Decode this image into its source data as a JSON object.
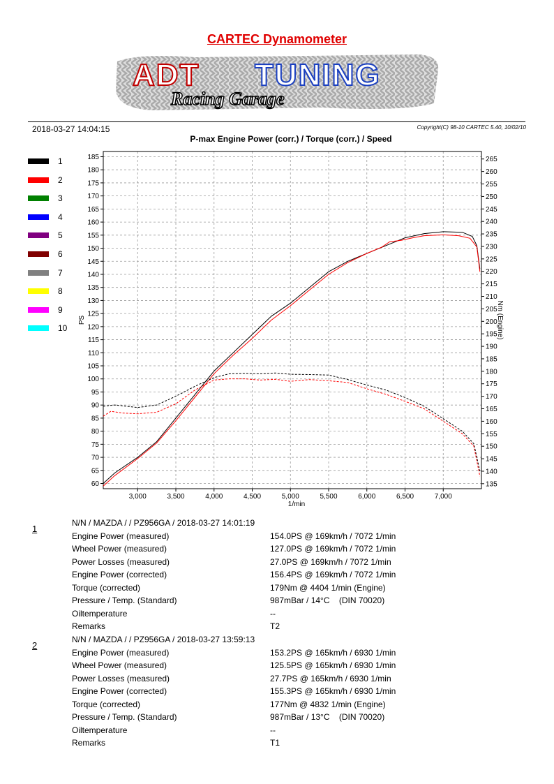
{
  "header": {
    "title": "CARTEC Dynamometer",
    "datetime": "2018-03-27  14:04:15",
    "copyright": "Copyright(C) 98-10 CARTEC 5.40, 10/02/10",
    "logo": {
      "text": "ADT TUNING",
      "subtext": "Racing Garage"
    }
  },
  "legend": [
    {
      "label": "1",
      "color": "#000000"
    },
    {
      "label": "2",
      "color": "#ff0000"
    },
    {
      "label": "3",
      "color": "#008000"
    },
    {
      "label": "4",
      "color": "#0000ff"
    },
    {
      "label": "5",
      "color": "#800080"
    },
    {
      "label": "6",
      "color": "#800000"
    },
    {
      "label": "7",
      "color": "#808080"
    },
    {
      "label": "8",
      "color": "#ffff00"
    },
    {
      "label": "9",
      "color": "#ff00ff"
    },
    {
      "label": "10",
      "color": "#00ffff"
    }
  ],
  "chart_data": {
    "type": "line",
    "title": "P-max Engine Power (corr.) / Torque (corr.) / Speed",
    "xlabel": "1/min",
    "ylabel": "PS",
    "y2label": "Nm (Engine)",
    "xlim": [
      2550,
      7500
    ],
    "ylim": [
      58,
      187
    ],
    "y2lim": [
      133,
      268
    ],
    "xticks": [
      3000,
      3500,
      4000,
      4500,
      5000,
      5500,
      6000,
      6500,
      7000
    ],
    "xtick_labels": [
      "3,000",
      "3,500",
      "4,000",
      "4,500",
      "5,000",
      "5,500",
      "6,000",
      "6,500",
      "7,000"
    ],
    "yticks": [
      60,
      65,
      70,
      75,
      80,
      85,
      90,
      95,
      100,
      105,
      110,
      115,
      120,
      125,
      130,
      135,
      140,
      145,
      150,
      155,
      160,
      165,
      170,
      175,
      180,
      185
    ],
    "y2ticks": [
      135,
      140,
      145,
      150,
      155,
      160,
      165,
      170,
      175,
      180,
      185,
      190,
      195,
      200,
      205,
      210,
      215,
      220,
      225,
      230,
      235,
      240,
      245,
      250,
      255,
      260,
      265
    ],
    "grid": true,
    "series": [
      {
        "name": "1",
        "kind": "power",
        "axis": "left",
        "color": "#000000",
        "points": [
          [
            2550,
            60
          ],
          [
            2700,
            64
          ],
          [
            3000,
            70
          ],
          [
            3250,
            76
          ],
          [
            3500,
            85
          ],
          [
            3750,
            94
          ],
          [
            4000,
            103
          ],
          [
            4250,
            110
          ],
          [
            4500,
            117
          ],
          [
            4750,
            124
          ],
          [
            5000,
            129
          ],
          [
            5250,
            135
          ],
          [
            5500,
            141
          ],
          [
            5750,
            145
          ],
          [
            6000,
            148
          ],
          [
            6250,
            151
          ],
          [
            6500,
            154
          ],
          [
            6750,
            155.6
          ],
          [
            7000,
            156.3
          ],
          [
            7250,
            156.1
          ],
          [
            7380,
            154.5
          ],
          [
            7440,
            151
          ],
          [
            7480,
            142
          ]
        ]
      },
      {
        "name": "2",
        "kind": "power",
        "axis": "left",
        "color": "#ff0000",
        "points": [
          [
            2550,
            59
          ],
          [
            2700,
            63
          ],
          [
            3000,
            69.5
          ],
          [
            3250,
            75.5
          ],
          [
            3500,
            84
          ],
          [
            3750,
            93
          ],
          [
            4000,
            102
          ],
          [
            4250,
            109
          ],
          [
            4500,
            115.5
          ],
          [
            4750,
            122.5
          ],
          [
            5000,
            128
          ],
          [
            5250,
            134
          ],
          [
            5500,
            140
          ],
          [
            5750,
            144.5
          ],
          [
            6000,
            148
          ],
          [
            6200,
            150.5
          ],
          [
            6300,
            152.5
          ],
          [
            6450,
            153
          ],
          [
            6600,
            154
          ],
          [
            6750,
            154.8
          ],
          [
            7000,
            155.1
          ],
          [
            7200,
            154.8
          ],
          [
            7350,
            153.8
          ],
          [
            7440,
            150.5
          ],
          [
            7480,
            141
          ]
        ]
      },
      {
        "name": "1",
        "kind": "torque",
        "axis": "right",
        "color": "#000000",
        "points": [
          [
            2550,
            166
          ],
          [
            2700,
            166.5
          ],
          [
            3000,
            165.5
          ],
          [
            3250,
            166.5
          ],
          [
            3500,
            170
          ],
          [
            3750,
            174
          ],
          [
            4000,
            177.5
          ],
          [
            4200,
            179
          ],
          [
            4400,
            179.2
          ],
          [
            4600,
            179
          ],
          [
            4800,
            179.3
          ],
          [
            5000,
            178.8
          ],
          [
            5250,
            178.7
          ],
          [
            5500,
            178.5
          ],
          [
            5750,
            176.7
          ],
          [
            6000,
            174.5
          ],
          [
            6250,
            172.5
          ],
          [
            6500,
            169.5
          ],
          [
            6750,
            166
          ],
          [
            7000,
            161
          ],
          [
            7250,
            156
          ],
          [
            7400,
            151
          ],
          [
            7480,
            140
          ]
        ]
      },
      {
        "name": "2",
        "kind": "torque",
        "axis": "right",
        "color": "#ff0000",
        "points": [
          [
            2550,
            162
          ],
          [
            2650,
            164
          ],
          [
            2800,
            163.3
          ],
          [
            3000,
            163
          ],
          [
            3250,
            163.6
          ],
          [
            3500,
            167
          ],
          [
            3750,
            172.5
          ],
          [
            4000,
            176.5
          ],
          [
            4200,
            177
          ],
          [
            4400,
            177
          ],
          [
            4600,
            176.5
          ],
          [
            4800,
            176.8
          ],
          [
            5000,
            176
          ],
          [
            5250,
            176.7
          ],
          [
            5500,
            176.2
          ],
          [
            5750,
            175.5
          ],
          [
            6000,
            173
          ],
          [
            6250,
            170.8
          ],
          [
            6500,
            168
          ],
          [
            6750,
            165
          ],
          [
            7000,
            160
          ],
          [
            7250,
            155
          ],
          [
            7400,
            150
          ],
          [
            7480,
            138
          ]
        ]
      }
    ]
  },
  "runs": [
    {
      "number": "1",
      "header": "N/N / MAZDA /  / PZ956GA / 2018-03-27 14:01:19",
      "rows": [
        {
          "label": "Engine Power (measured)",
          "value": "154.0PS @ 169km/h / 7072 1/min"
        },
        {
          "label": "Wheel Power (measured)",
          "value": "127.0PS @ 169km/h / 7072 1/min"
        },
        {
          "label": "Power Losses (measured)",
          "value": "27.0PS @ 169km/h / 7072 1/min"
        },
        {
          "label": "Engine Power (corrected)",
          "value": "156.4PS @ 169km/h / 7072 1/min"
        },
        {
          "label": "Torque (corrected)",
          "value": "179Nm @ 4404 1/min (Engine)"
        },
        {
          "label": "Pressure / Temp. (Standard)",
          "value": "987mBar / 14°C    (DIN 70020)"
        },
        {
          "label": "Oiltemperature",
          "value": "--"
        },
        {
          "label": "Remarks",
          "value": "T2"
        }
      ]
    },
    {
      "number": "2",
      "header": "N/N / MAZDA /  / PZ956GA / 2018-03-27 13:59:13",
      "rows": [
        {
          "label": "Engine Power (measured)",
          "value": "153.2PS @ 165km/h / 6930 1/min"
        },
        {
          "label": "Wheel Power (measured)",
          "value": "125.5PS @ 165km/h / 6930 1/min"
        },
        {
          "label": "Power Losses (measured)",
          "value": "27.7PS @ 165km/h / 6930 1/min"
        },
        {
          "label": "Engine Power (corrected)",
          "value": "155.3PS @ 165km/h / 6930 1/min"
        },
        {
          "label": "Torque (corrected)",
          "value": "177Nm @ 4832 1/min (Engine)"
        },
        {
          "label": "Pressure / Temp. (Standard)",
          "value": "987mBar / 13°C    (DIN 70020)"
        },
        {
          "label": "Oiltemperature",
          "value": "--"
        },
        {
          "label": "Remarks",
          "value": "T1"
        }
      ]
    }
  ]
}
